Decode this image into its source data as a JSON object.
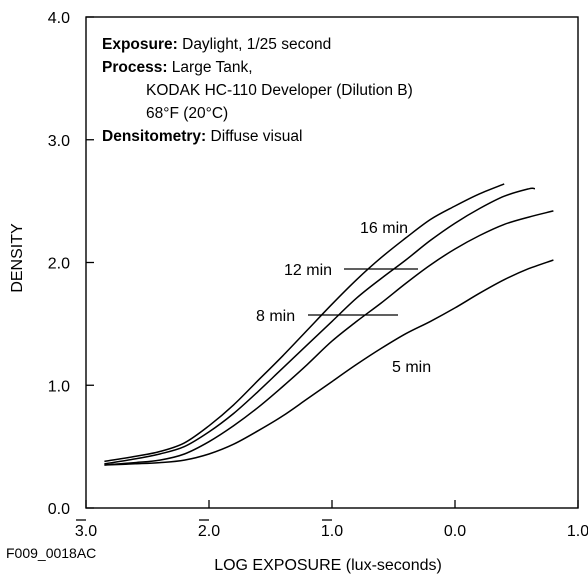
{
  "chart_data": {
    "type": "line",
    "title": "",
    "xlabel": "LOG EXPOSURE (lux-seconds)",
    "ylabel": "DENSITY",
    "xlim": [
      -3.0,
      1.0
    ],
    "ylim": [
      0.0,
      4.0
    ],
    "x_ticks": [
      {
        "value": -3.0,
        "digit": "3",
        "suffix": ".0",
        "bar": true
      },
      {
        "value": -2.0,
        "digit": "2",
        "suffix": ".0",
        "bar": true
      },
      {
        "value": -1.0,
        "digit": "1",
        "suffix": ".0",
        "bar": true
      },
      {
        "value": 0.0,
        "digit": "0",
        "suffix": ".0",
        "bar": false
      },
      {
        "value": 1.0,
        "digit": "1",
        "suffix": ".0",
        "bar": false
      }
    ],
    "y_ticks": [
      {
        "value": 0.0,
        "label": "0.0"
      },
      {
        "value": 1.0,
        "label": "1.0"
      },
      {
        "value": 2.0,
        "label": "2.0"
      },
      {
        "value": 3.0,
        "label": "3.0"
      },
      {
        "value": 4.0,
        "label": "4.0"
      }
    ],
    "grid": false,
    "series": [
      {
        "name": "16 min",
        "x": [
          -2.85,
          -2.6,
          -2.4,
          -2.2,
          -2.0,
          -1.8,
          -1.6,
          -1.4,
          -1.2,
          -1.0,
          -0.8,
          -0.6,
          -0.4,
          -0.2,
          0.0,
          0.2,
          0.4
        ],
        "y": [
          0.38,
          0.42,
          0.46,
          0.53,
          0.67,
          0.84,
          1.04,
          1.24,
          1.45,
          1.66,
          1.86,
          2.04,
          2.2,
          2.35,
          2.46,
          2.56,
          2.64
        ]
      },
      {
        "name": "12 min",
        "x": [
          -2.85,
          -2.6,
          -2.4,
          -2.2,
          -2.0,
          -1.8,
          -1.6,
          -1.4,
          -1.2,
          -1.0,
          -0.8,
          -0.6,
          -0.4,
          -0.2,
          0.0,
          0.2,
          0.4,
          0.6,
          0.65
        ],
        "y": [
          0.36,
          0.4,
          0.44,
          0.5,
          0.62,
          0.77,
          0.95,
          1.14,
          1.33,
          1.52,
          1.71,
          1.87,
          2.02,
          2.18,
          2.32,
          2.44,
          2.54,
          2.6,
          2.6
        ]
      },
      {
        "name": "8 min",
        "x": [
          -2.85,
          -2.6,
          -2.4,
          -2.2,
          -2.0,
          -1.8,
          -1.6,
          -1.4,
          -1.2,
          -1.0,
          -0.8,
          -0.6,
          -0.4,
          -0.2,
          0.0,
          0.2,
          0.4,
          0.6,
          0.8
        ],
        "y": [
          0.35,
          0.37,
          0.39,
          0.44,
          0.54,
          0.67,
          0.82,
          0.99,
          1.17,
          1.36,
          1.52,
          1.67,
          1.83,
          1.98,
          2.11,
          2.22,
          2.31,
          2.37,
          2.42
        ]
      },
      {
        "name": "5 min",
        "x": [
          -2.85,
          -2.6,
          -2.4,
          -2.2,
          -2.0,
          -1.8,
          -1.6,
          -1.4,
          -1.2,
          -1.0,
          -0.8,
          -0.6,
          -0.4,
          -0.2,
          0.0,
          0.2,
          0.4,
          0.6,
          0.8
        ],
        "y": [
          0.35,
          0.36,
          0.37,
          0.39,
          0.44,
          0.52,
          0.63,
          0.75,
          0.89,
          1.03,
          1.17,
          1.3,
          1.42,
          1.52,
          1.63,
          1.75,
          1.86,
          1.95,
          2.02
        ]
      }
    ],
    "curve_labels": [
      {
        "text": "16 min",
        "leader": false
      },
      {
        "text": "12 min",
        "leader": true
      },
      {
        "text": "8 min",
        "leader": true
      },
      {
        "text": "5 min",
        "leader": false
      }
    ],
    "annotations": {
      "lines": [
        {
          "bold": "Exposure:",
          "rest": " Daylight, 1/25 second"
        },
        {
          "bold": "Process:",
          "rest": " Large Tank,"
        },
        {
          "bold": "",
          "rest": "KODAK HC-110 Developer (Dilution B)"
        },
        {
          "bold": "",
          "rest": "68°F (20°C)"
        },
        {
          "bold": "Densitometry:",
          "rest": " Diffuse visual"
        }
      ]
    },
    "figure_id": "F009_0018AC"
  }
}
